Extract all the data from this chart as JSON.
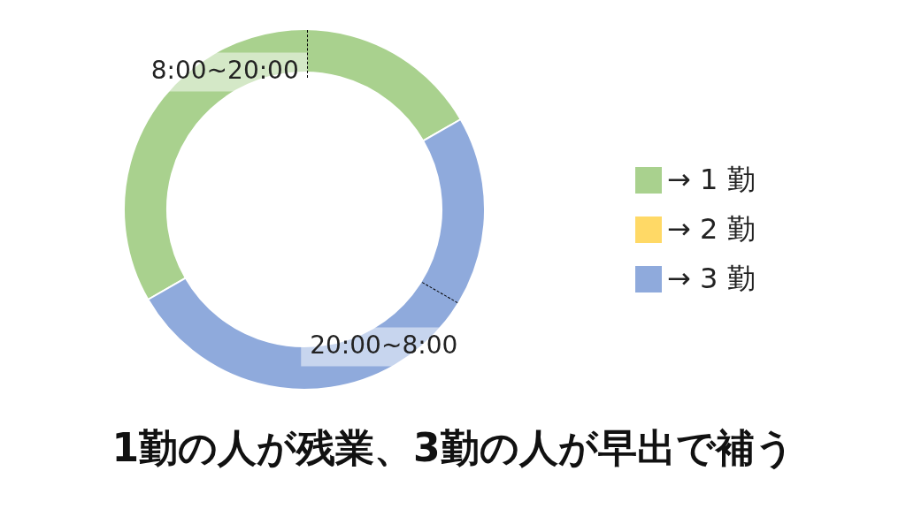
{
  "chart_data": {
    "type": "donut",
    "title": "1勤の人が残業、3勤の人が早出で補う",
    "categories": [
      "→ 1 勤",
      "→ 2 勤",
      "→ 3 勤"
    ],
    "values": [
      50,
      0,
      50
    ],
    "colors": [
      "#a9d18e",
      "#ffd966",
      "#8faadc"
    ],
    "value_labels": [
      "8:00~20:00",
      null,
      "20:00~8:00"
    ],
    "legend": "right"
  }
}
